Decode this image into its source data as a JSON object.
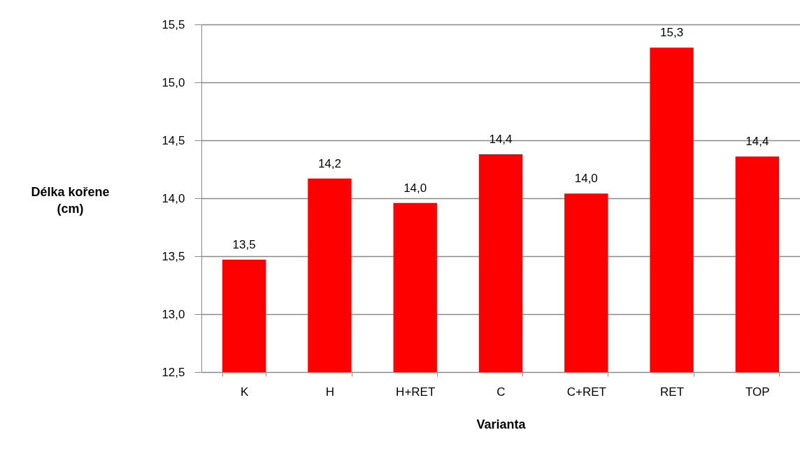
{
  "chart_data": {
    "type": "bar",
    "xlabel": "Varianta",
    "ylabel": "Délka kořene (cm)",
    "categories": [
      "K",
      "H",
      "H+RET",
      "C",
      "C+RET",
      "RET",
      "TOP"
    ],
    "values": [
      13.47,
      14.17,
      13.96,
      14.38,
      14.04,
      15.3,
      14.36
    ],
    "value_labels": [
      "13,5",
      "14,2",
      "14,0",
      "14,4",
      "14,0",
      "15,3",
      "14,4"
    ],
    "color": "#ff0000",
    "ylim": [
      12.5,
      15.5
    ],
    "yticks": [
      {
        "value": 12.5,
        "label": "12,5"
      },
      {
        "value": 13,
        "label": "13,0"
      },
      {
        "value": 13.5,
        "label": "13,5"
      },
      {
        "value": 14,
        "label": "14,0"
      },
      {
        "value": 14.5,
        "label": "14,5"
      },
      {
        "value": 15,
        "label": "15,0"
      },
      {
        "value": 15.5,
        "label": "15,5"
      }
    ],
    "grid": "y"
  }
}
